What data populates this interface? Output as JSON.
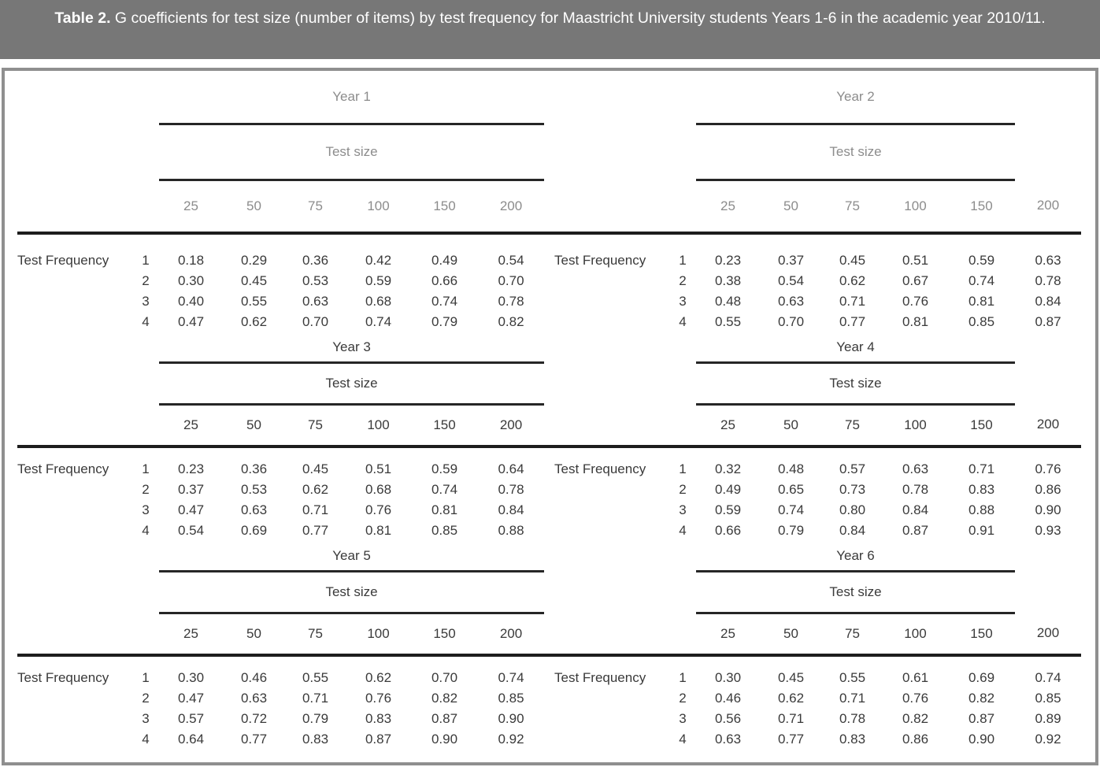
{
  "caption": {
    "number": "Table 2.",
    "text": "G coefficients for test size (number of items) by test frequency for Maastricht University students Years 1-6 in the academic year 2010/11."
  },
  "table": {
    "row_group_label": "Test Frequency",
    "col_group_label": "Test size",
    "col_headers": [
      "25",
      "50",
      "75",
      "100",
      "150",
      "200"
    ],
    "frequencies": [
      "1",
      "2",
      "3",
      "4"
    ],
    "years": [
      {
        "name": "Year 1",
        "rows": [
          [
            "0.18",
            "0.29",
            "0.36",
            "0.42",
            "0.49",
            "0.54"
          ],
          [
            "0.30",
            "0.45",
            "0.53",
            "0.59",
            "0.66",
            "0.70"
          ],
          [
            "0.40",
            "0.55",
            "0.63",
            "0.68",
            "0.74",
            "0.78"
          ],
          [
            "0.47",
            "0.62",
            "0.70",
            "0.74",
            "0.79",
            "0.82"
          ]
        ]
      },
      {
        "name": "Year 2",
        "rows": [
          [
            "0.23",
            "0.37",
            "0.45",
            "0.51",
            "0.59",
            "0.63"
          ],
          [
            "0.38",
            "0.54",
            "0.62",
            "0.67",
            "0.74",
            "0.78"
          ],
          [
            "0.48",
            "0.63",
            "0.71",
            "0.76",
            "0.81",
            "0.84"
          ],
          [
            "0.55",
            "0.70",
            "0.77",
            "0.81",
            "0.85",
            "0.87"
          ]
        ]
      },
      {
        "name": "Year 3",
        "rows": [
          [
            "0.23",
            "0.36",
            "0.45",
            "0.51",
            "0.59",
            "0.64"
          ],
          [
            "0.37",
            "0.53",
            "0.62",
            "0.68",
            "0.74",
            "0.78"
          ],
          [
            "0.47",
            "0.63",
            "0.71",
            "0.76",
            "0.81",
            "0.84"
          ],
          [
            "0.54",
            "0.69",
            "0.77",
            "0.81",
            "0.85",
            "0.88"
          ]
        ]
      },
      {
        "name": "Year 4",
        "rows": [
          [
            "0.32",
            "0.48",
            "0.57",
            "0.63",
            "0.71",
            "0.76"
          ],
          [
            "0.49",
            "0.65",
            "0.73",
            "0.78",
            "0.83",
            "0.86"
          ],
          [
            "0.59",
            "0.74",
            "0.80",
            "0.84",
            "0.88",
            "0.90"
          ],
          [
            "0.66",
            "0.79",
            "0.84",
            "0.87",
            "0.91",
            "0.93"
          ]
        ]
      },
      {
        "name": "Year 5",
        "rows": [
          [
            "0.30",
            "0.46",
            "0.55",
            "0.62",
            "0.70",
            "0.74"
          ],
          [
            "0.47",
            "0.63",
            "0.71",
            "0.76",
            "0.82",
            "0.85"
          ],
          [
            "0.57",
            "0.72",
            "0.79",
            "0.83",
            "0.87",
            "0.90"
          ],
          [
            "0.64",
            "0.77",
            "0.83",
            "0.87",
            "0.90",
            "0.92"
          ]
        ]
      },
      {
        "name": "Year 6",
        "rows": [
          [
            "0.30",
            "0.45",
            "0.55",
            "0.61",
            "0.69",
            "0.74"
          ],
          [
            "0.46",
            "0.62",
            "0.71",
            "0.76",
            "0.82",
            "0.85"
          ],
          [
            "0.56",
            "0.71",
            "0.78",
            "0.82",
            "0.87",
            "0.89"
          ],
          [
            "0.63",
            "0.77",
            "0.83",
            "0.86",
            "0.90",
            "0.92"
          ]
        ]
      }
    ]
  },
  "colors": {
    "caption_bg": "#777777",
    "caption_text": "#ffffff",
    "frame_border": "#8f8f8f",
    "muted_header_text": "#8c8c8c",
    "body_text": "#3a3a3a",
    "rule": "#1d1d1d"
  }
}
